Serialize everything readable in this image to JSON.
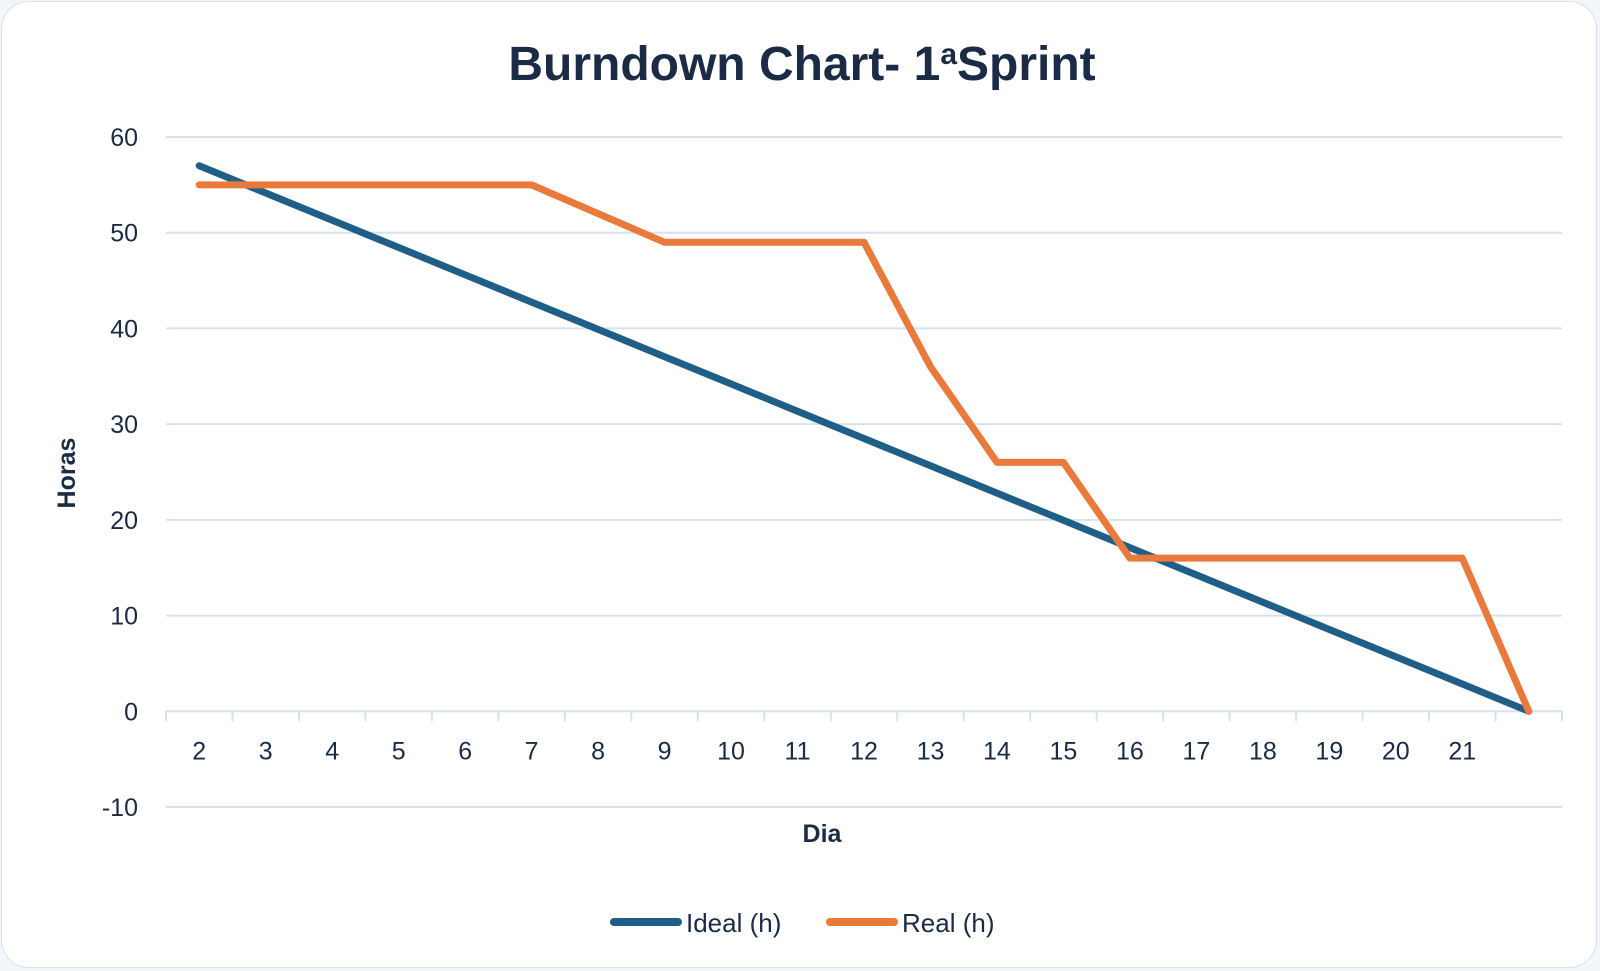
{
  "chart_data": {
    "type": "line",
    "title_main": "Burndown Chart- 1",
    "title_ordinal": "a",
    "title_rest": "Sprint",
    "xlabel": "Dia",
    "ylabel": "Horas",
    "x": [
      "2",
      "3",
      "4",
      "5",
      "6",
      "7",
      "8",
      "9",
      "10",
      "11",
      "12",
      "13",
      "14",
      "15",
      "16",
      "17",
      "18",
      "19",
      "20",
      "21",
      ""
    ],
    "ylim": [
      -10,
      60
    ],
    "yticks": [
      "60",
      "50",
      "40",
      "30",
      "20",
      "10",
      "0",
      "-10"
    ],
    "grid": true,
    "legend_position": "bottom",
    "series": [
      {
        "name": "Ideal (h)",
        "color": "#1f5f87",
        "values": [
          57,
          54.15,
          51.3,
          48.45,
          45.6,
          42.75,
          39.9,
          37.05,
          34.2,
          31.35,
          28.5,
          25.65,
          22.8,
          19.95,
          17.1,
          14.25,
          11.4,
          8.55,
          5.7,
          2.85,
          0
        ]
      },
      {
        "name": "Real (h)",
        "color": "#e97a3c",
        "values": [
          55,
          55,
          55,
          55,
          55,
          55,
          52,
          49,
          49,
          49,
          49,
          36,
          26,
          26,
          16,
          16,
          16,
          16,
          16,
          16,
          0
        ]
      }
    ]
  }
}
